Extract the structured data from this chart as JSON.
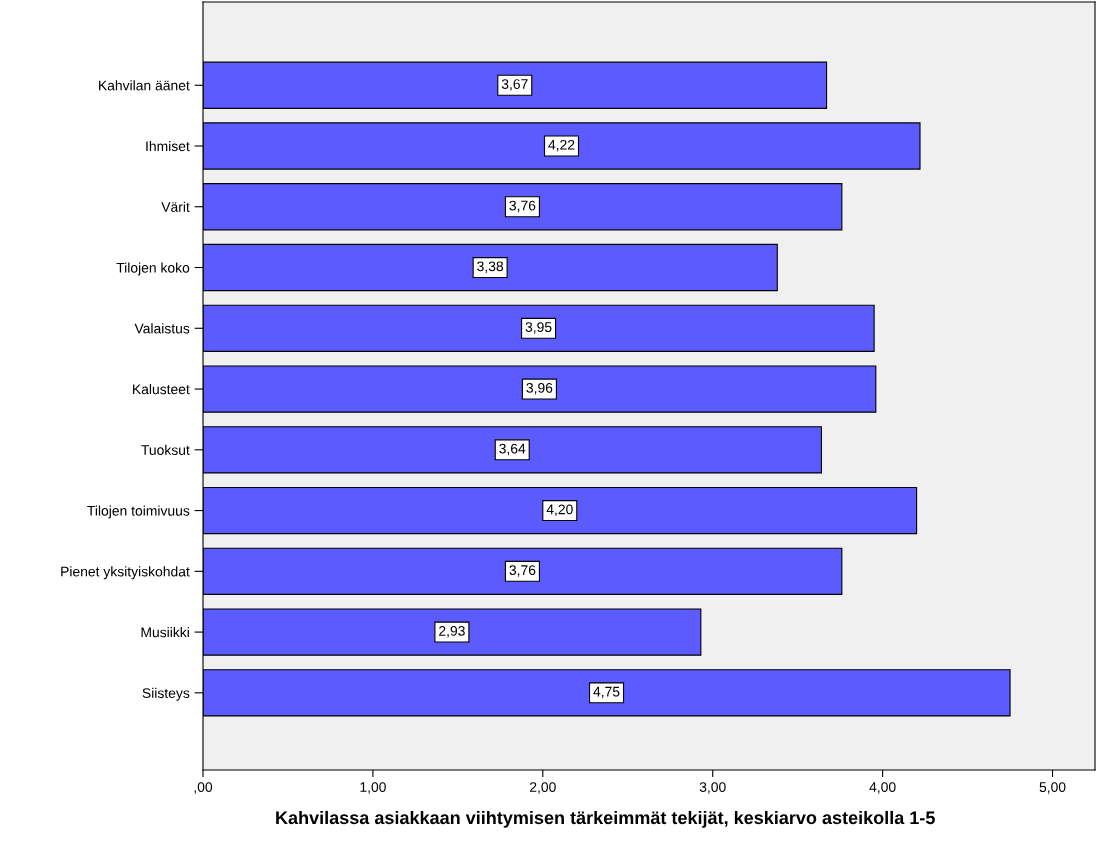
{
  "chart_data": {
    "type": "bar",
    "orientation": "horizontal",
    "xlabel": "Kahvilassa asiakkaan viihtymisen tärkeimmät tekijät, keskiarvo asteikolla 1-5",
    "categories": [
      "Kahvilan äänet",
      "Ihmiset",
      "Värit",
      "Tilojen koko",
      "Valaistus",
      "Kalusteet",
      "Tuoksut",
      "Tilojen toimivuus",
      "Pienet yksityiskohdat",
      "Musiikki",
      "Siisteys"
    ],
    "values": [
      3.67,
      4.22,
      3.76,
      3.38,
      3.95,
      3.96,
      3.64,
      4.2,
      3.76,
      2.93,
      4.75
    ],
    "value_labels": [
      "3,67",
      "4,22",
      "3,76",
      "3,38",
      "3,95",
      "3,96",
      "3,64",
      "4,20",
      "3,76",
      "2,93",
      "4,75"
    ],
    "color": "#5b5bff",
    "xlim": [
      0,
      5.25
    ],
    "xticks": [
      {
        "value": 0,
        "label": ",00"
      },
      {
        "value": 1,
        "label": "1,00"
      },
      {
        "value": 2,
        "label": "2,00"
      },
      {
        "value": 3,
        "label": "3,00"
      },
      {
        "value": 4,
        "label": "4,00"
      },
      {
        "value": 5,
        "label": "5,00"
      }
    ],
    "grid": false,
    "legend": false
  }
}
